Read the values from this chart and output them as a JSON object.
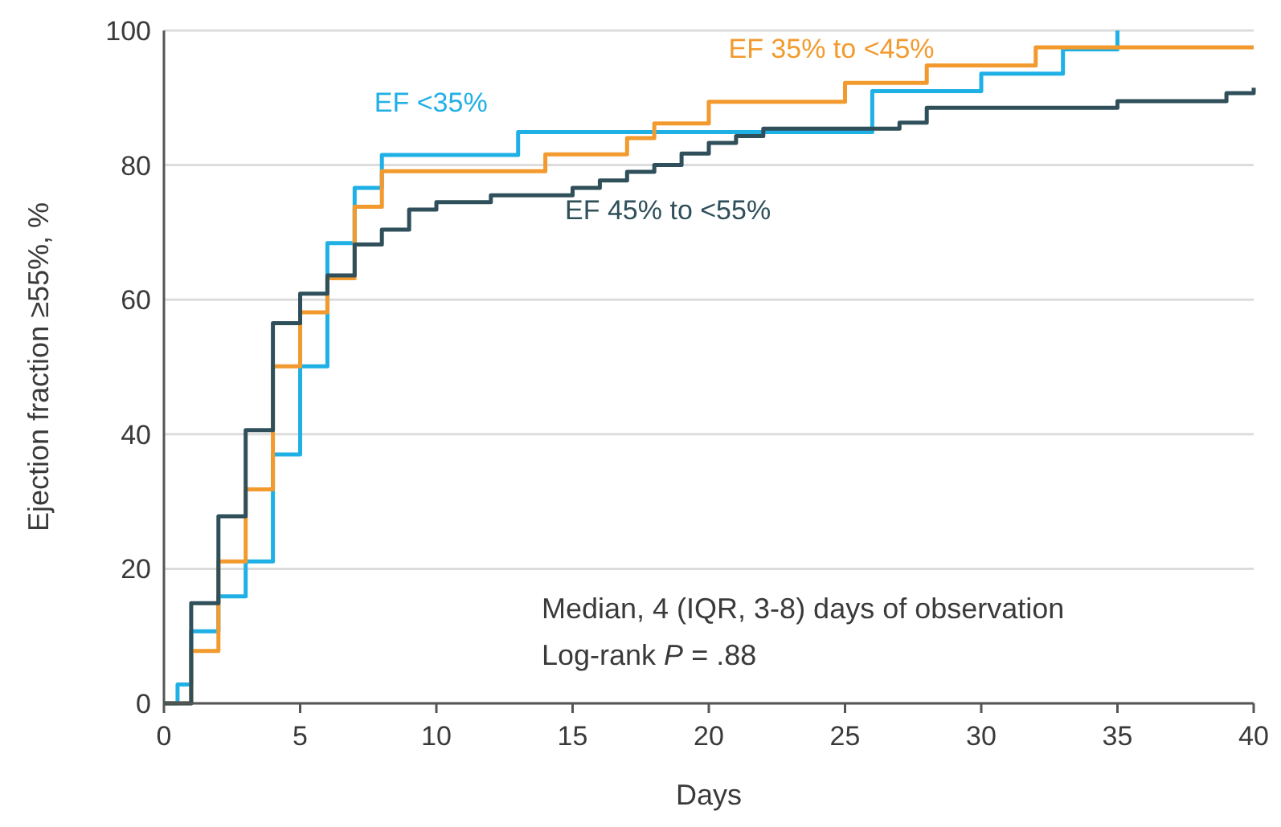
{
  "chart_data": {
    "type": "step",
    "xlabel": "Days",
    "ylabel": "Ejection fraction ≥55%, %",
    "xlim": [
      0,
      40
    ],
    "ylim": [
      0,
      100
    ],
    "xticks": [
      0,
      5,
      10,
      15,
      20,
      25,
      30,
      35,
      40
    ],
    "yticks": [
      0,
      20,
      40,
      60,
      80,
      100
    ],
    "grid": "y",
    "legend": false,
    "series": [
      {
        "name": "EF <35%",
        "color": "#1fb0e6",
        "x": [
          0,
          0.5,
          1,
          2,
          3,
          4,
          5,
          6,
          7,
          8,
          13,
          26,
          30,
          33,
          35
        ],
        "values": [
          0,
          2.8,
          10.7,
          15.9,
          21.1,
          37,
          50.1,
          68.4,
          76.6,
          81.5,
          84.9,
          91,
          93.6,
          97.2,
          100
        ]
      },
      {
        "name": "EF 35% to <45%",
        "color": "#f29a2e",
        "x": [
          0,
          1,
          2,
          3,
          4,
          5,
          6,
          7,
          8,
          14,
          17,
          18,
          20,
          25,
          28,
          32,
          40
        ],
        "values": [
          0,
          7.8,
          21.1,
          31.8,
          50.1,
          58.1,
          63.2,
          73.8,
          79.1,
          81.6,
          84,
          86.2,
          89.4,
          92.2,
          94.8,
          97.5,
          97.5
        ]
      },
      {
        "name": "EF 45% to <55%",
        "color": "#2f4f5a",
        "x": [
          0,
          1,
          2,
          3,
          4,
          5,
          6,
          7,
          8,
          9,
          10,
          12,
          15,
          16,
          17,
          18,
          19,
          20,
          21,
          22,
          27,
          28,
          35,
          39,
          40
        ],
        "values": [
          0,
          14.9,
          27.8,
          40.6,
          56.5,
          60.9,
          63.6,
          68.2,
          70.4,
          73.4,
          74.5,
          75.5,
          76.6,
          77.7,
          79,
          80,
          81.7,
          83.3,
          84.3,
          85.4,
          86.3,
          88.5,
          89.5,
          90.7,
          91.5
        ]
      }
    ],
    "annotations": [
      "Median, 4 (IQR, 3-8) days of observation",
      "Log-rank P = .88"
    ]
  }
}
